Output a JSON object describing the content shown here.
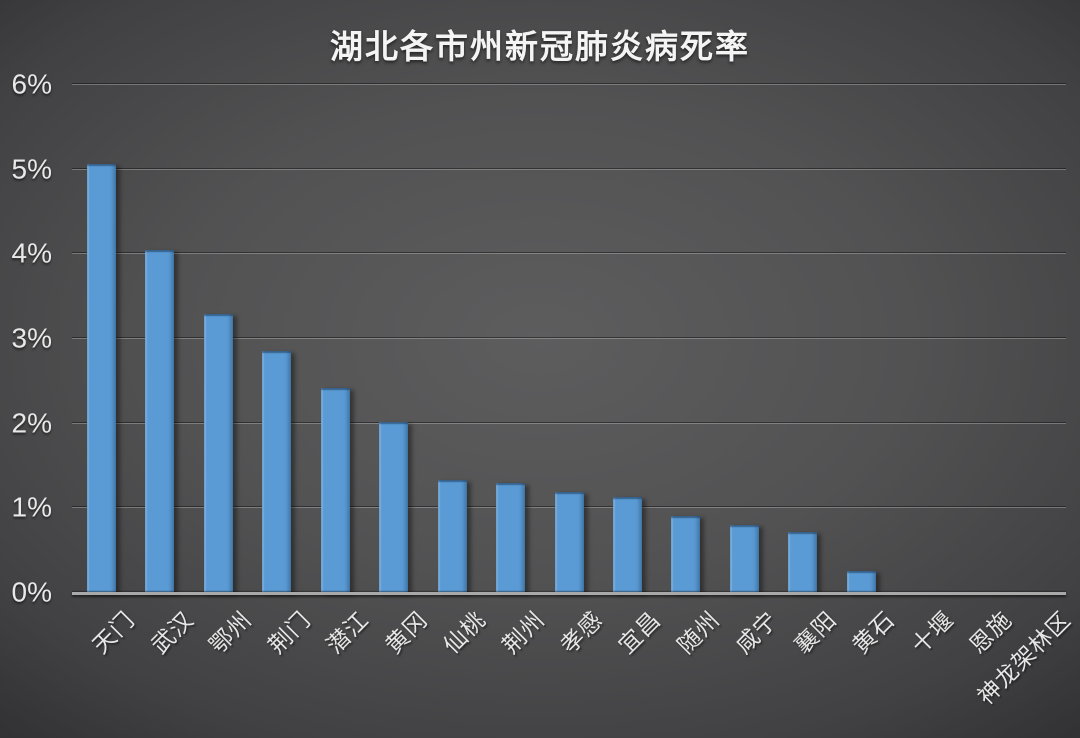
{
  "chart_data": {
    "type": "bar",
    "title": "湖北各市州新冠肺炎病死率",
    "categories": [
      "天门",
      "武汉",
      "鄂州",
      "荆门",
      "潜江",
      "黄冈",
      "仙桃",
      "荆州",
      "孝感",
      "宜昌",
      "随州",
      "咸宁",
      "襄阳",
      "黄石",
      "十堰",
      "恩施",
      "神龙架林区"
    ],
    "values": [
      5.07,
      4.05,
      3.3,
      2.86,
      2.42,
      2.02,
      1.33,
      1.3,
      1.19,
      1.13,
      0.91,
      0.8,
      0.72,
      0.26,
      0,
      0,
      0
    ],
    "unit": "%",
    "xlabel": "",
    "ylabel": "",
    "ylim": [
      0,
      6
    ],
    "ytick_step": 1,
    "ytick_labels": [
      "0%",
      "1%",
      "2%",
      "3%",
      "4%",
      "5%",
      "6%"
    ],
    "grid": true,
    "legend": "none",
    "bar_color": "#5b9bd5",
    "axis_line_color": "#a9a9a9",
    "text_color": "#e8e8e8",
    "background_center_color": "#5d5d5e",
    "background_edge_color": "#242426"
  }
}
